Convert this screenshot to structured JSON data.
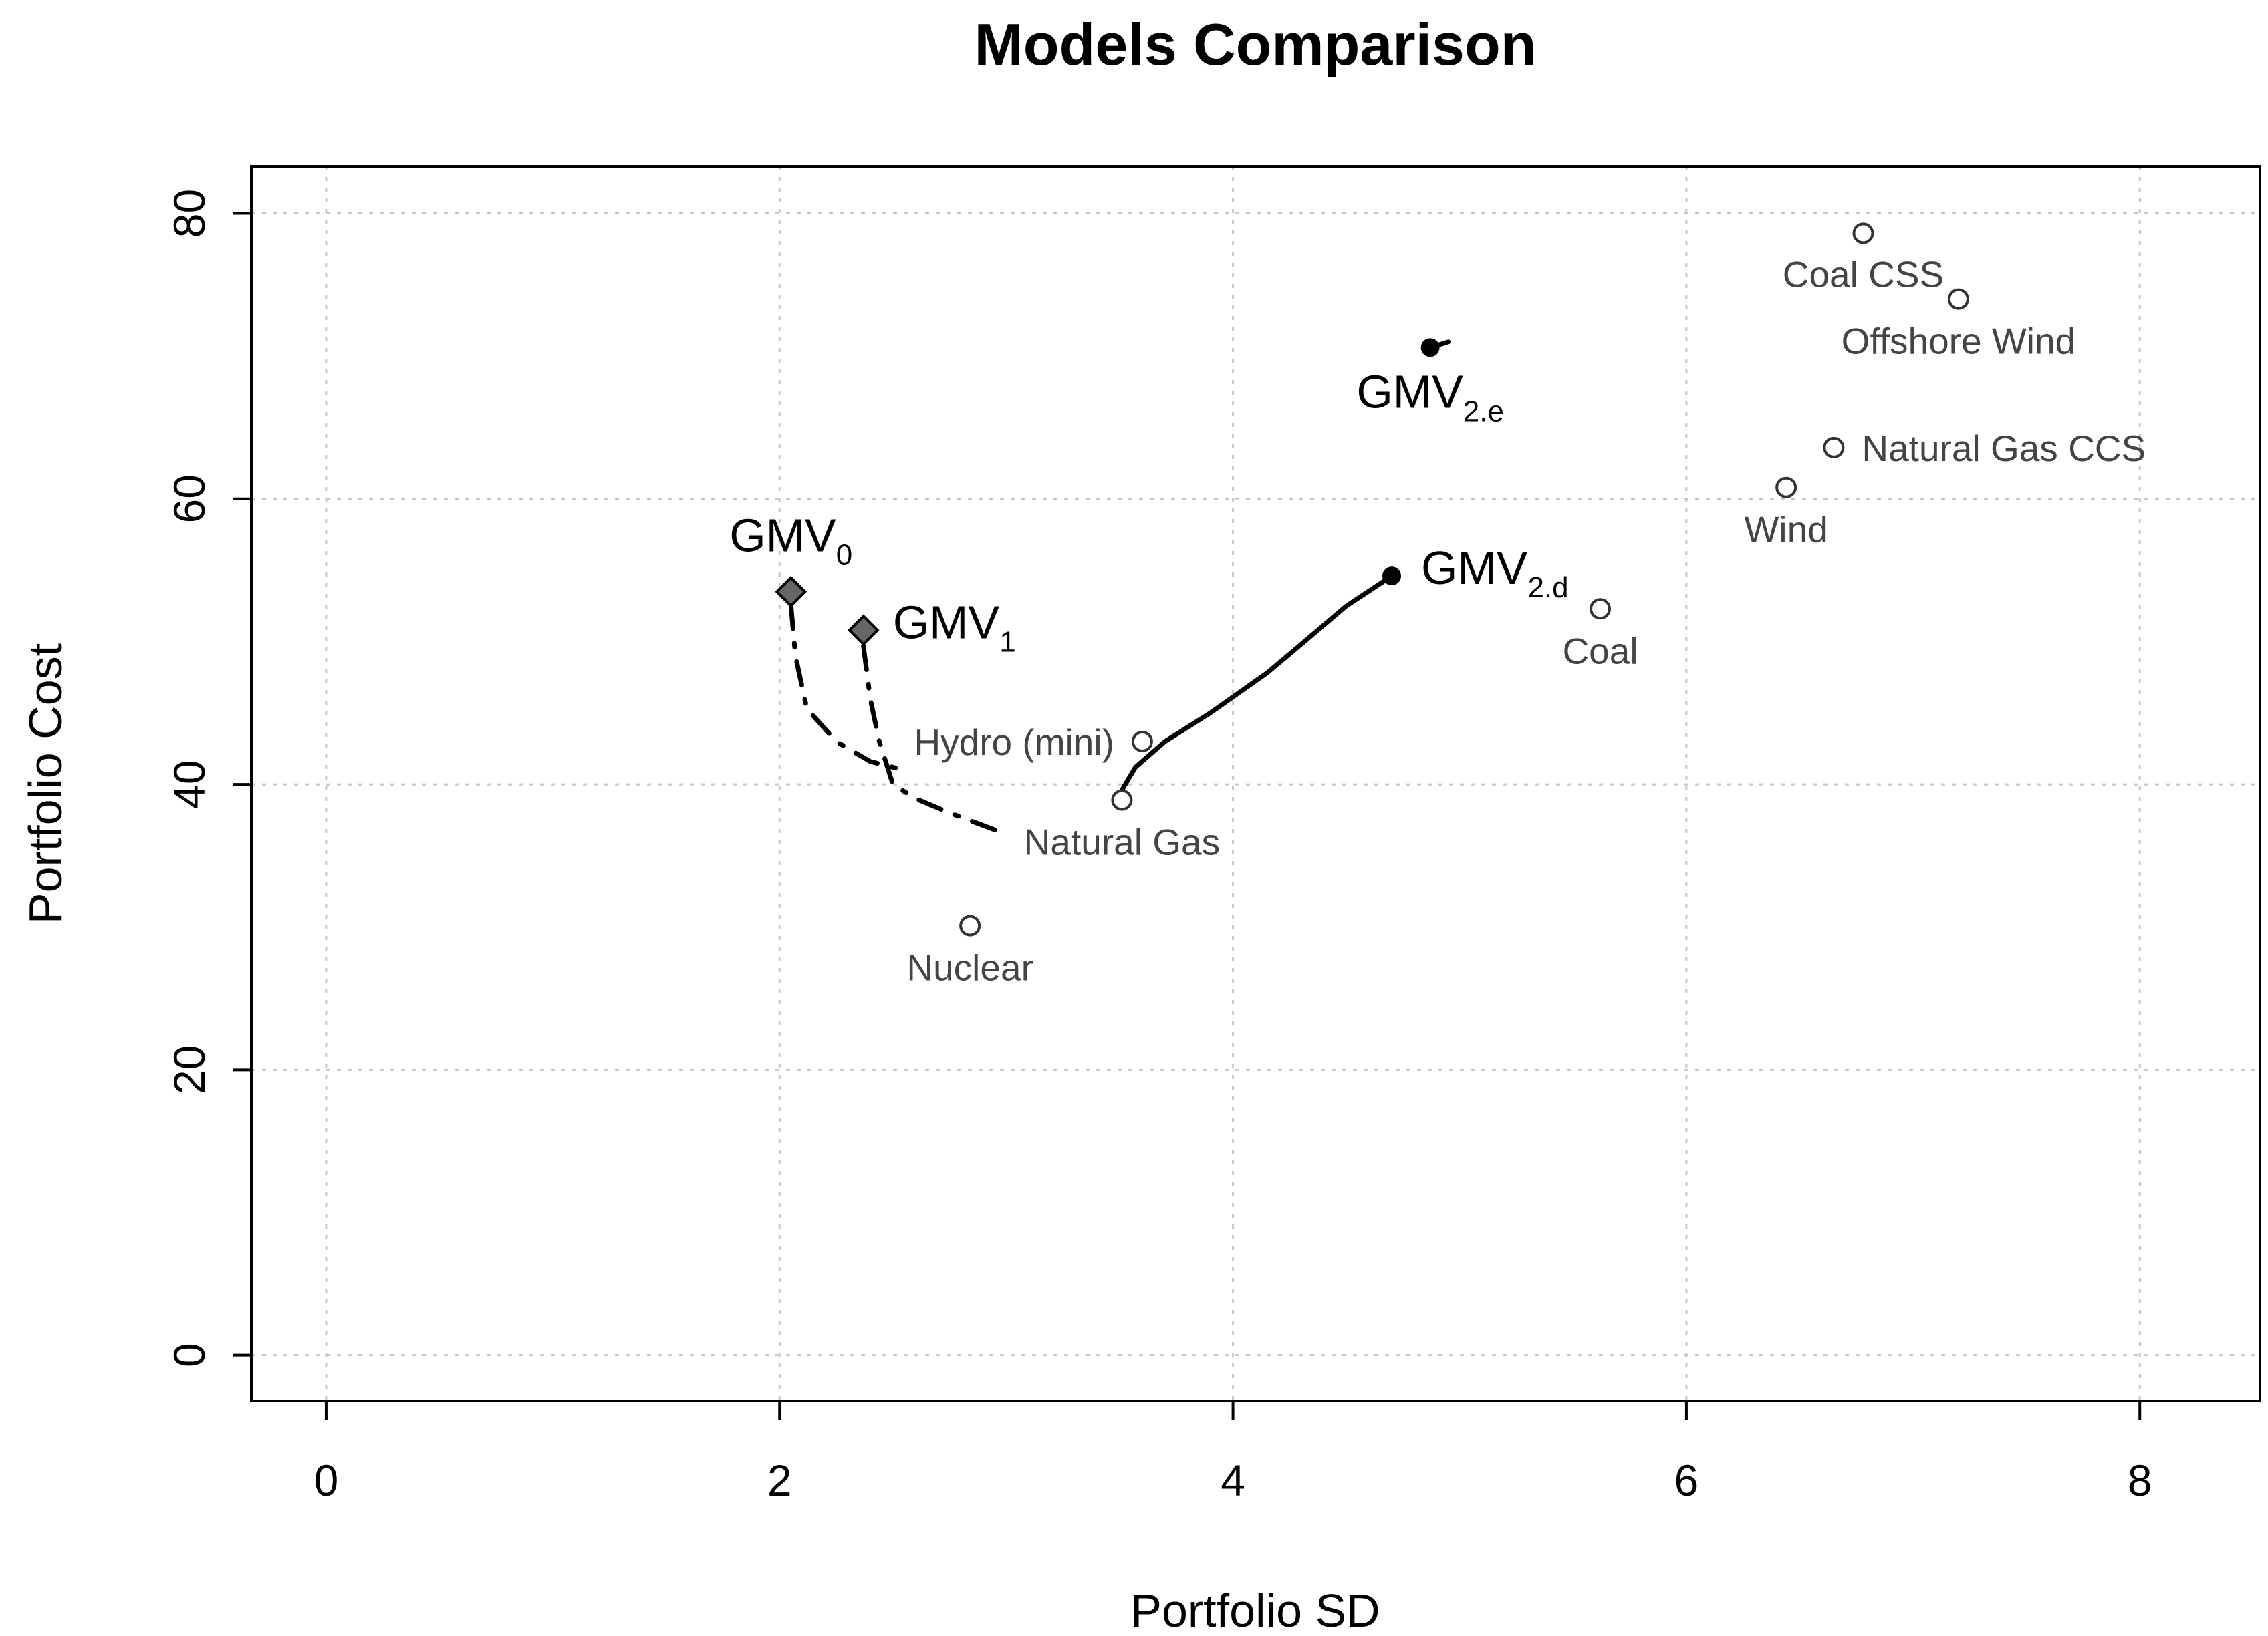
{
  "chart_data": {
    "type": "scatter",
    "title": "Models Comparison",
    "xlabel": "Portfolio SD",
    "ylabel": "Portfolio Cost",
    "xlim": [
      -0.33,
      8.53
    ],
    "ylim": [
      -3.2,
      83.3
    ],
    "x_ticks": [
      0,
      2,
      4,
      6,
      8
    ],
    "y_ticks": [
      0,
      20,
      40,
      60,
      80
    ],
    "grid": true,
    "technologies": [
      {
        "name": "Coal CSS",
        "x": 6.78,
        "y": 78.6,
        "label_pos": "below-left"
      },
      {
        "name": "Offshore Wind",
        "x": 7.2,
        "y": 74.0,
        "label_pos": "below"
      },
      {
        "name": "Natural Gas CCS",
        "x": 6.65,
        "y": 63.6,
        "label_pos": "right"
      },
      {
        "name": "Wind",
        "x": 6.44,
        "y": 60.8,
        "label_pos": "below"
      },
      {
        "name": "Coal",
        "x": 5.62,
        "y": 52.3,
        "label_pos": "below"
      },
      {
        "name": "Hydro (mini)",
        "x": 3.6,
        "y": 43.0,
        "label_pos": "left"
      },
      {
        "name": "Natural Gas",
        "x": 3.51,
        "y": 38.9,
        "label_pos": "below"
      },
      {
        "name": "Nuclear",
        "x": 2.84,
        "y": 30.1,
        "label_pos": "below"
      }
    ],
    "models": [
      {
        "name": "GMV",
        "sub": "0",
        "x": 2.05,
        "y": 53.5,
        "marker": "diamond",
        "label_pos": "above"
      },
      {
        "name": "GMV",
        "sub": "1",
        "x": 2.37,
        "y": 50.8,
        "marker": "diamond",
        "label_pos": "right"
      },
      {
        "name": "GMV",
        "sub": "2.e",
        "x": 4.87,
        "y": 70.6,
        "marker": "filled-circle",
        "label_pos": "below"
      },
      {
        "name": "GMV",
        "sub": "2.d",
        "x": 4.7,
        "y": 54.6,
        "marker": "filled-circle",
        "label_pos": "right"
      }
    ],
    "paths": [
      {
        "name": "GMV0 path",
        "style": "dashdot",
        "points": [
          [
            2.05,
            52.6
          ],
          [
            2.07,
            49.0
          ],
          [
            2.12,
            45.3
          ],
          [
            2.25,
            43.0
          ],
          [
            2.4,
            41.6
          ],
          [
            2.55,
            41.0
          ]
        ]
      },
      {
        "name": "GMV1 path",
        "style": "dashdot",
        "points": [
          [
            2.37,
            49.7
          ],
          [
            2.4,
            46.0
          ],
          [
            2.44,
            43.0
          ],
          [
            2.5,
            40.0
          ],
          [
            2.6,
            39.0
          ],
          [
            2.75,
            38.0
          ],
          [
            2.95,
            36.8
          ]
        ]
      },
      {
        "name": "GMV2.d path",
        "style": "solid",
        "points": [
          [
            3.51,
            39.6
          ],
          [
            3.57,
            41.2
          ],
          [
            3.7,
            43.0
          ],
          [
            3.9,
            45.0
          ],
          [
            4.15,
            47.8
          ],
          [
            4.3,
            49.8
          ],
          [
            4.5,
            52.5
          ],
          [
            4.7,
            54.6
          ]
        ]
      },
      {
        "name": "GMV2.e path",
        "style": "solid",
        "points": [
          [
            4.87,
            70.6
          ],
          [
            4.95,
            71.0
          ]
        ]
      }
    ]
  }
}
